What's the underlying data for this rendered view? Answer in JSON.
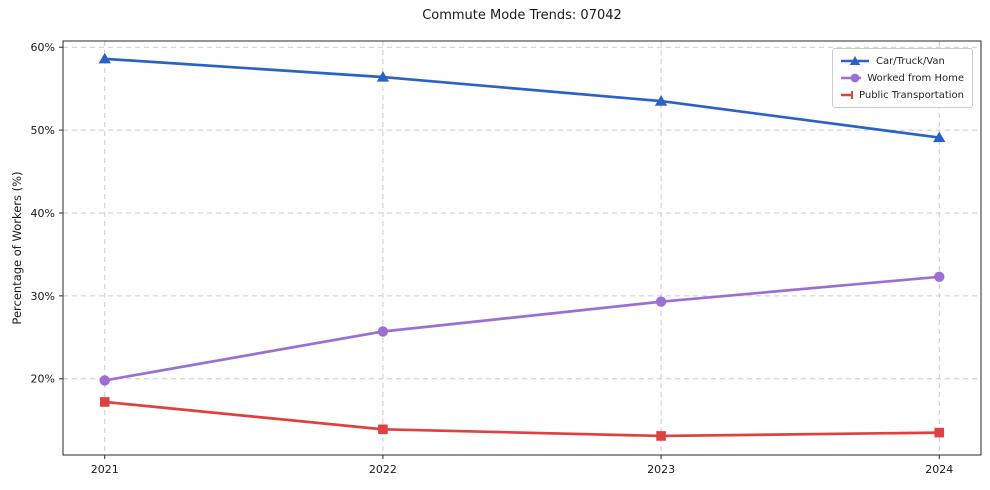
{
  "title": "Commute Mode Trends: 07042",
  "chart_data": {
    "type": "line",
    "title": "Commute Mode Trends: 07042",
    "xlabel": "",
    "ylabel": "Percentage of Workers (%)",
    "categories": [
      "2021",
      "2022",
      "2023",
      "2024"
    ],
    "series": [
      {
        "name": "Car/Truck/Van",
        "values": [
          58.6,
          56.4,
          53.5,
          49.1
        ],
        "color": "#2a63c6",
        "marker": "triangle"
      },
      {
        "name": "Worked from Home",
        "values": [
          19.8,
          25.7,
          29.3,
          32.3
        ],
        "color": "#9b70d2",
        "marker": "circle"
      },
      {
        "name": "Public Transportation",
        "values": [
          17.2,
          13.9,
          13.1,
          13.5
        ],
        "color": "#e04040",
        "marker": "square"
      }
    ],
    "yticks": [
      20,
      30,
      40,
      50,
      60
    ],
    "ytick_labels": [
      "20%",
      "30%",
      "40%",
      "50%",
      "60%"
    ],
    "ylim": [
      10.8,
      60.75
    ],
    "grid": true,
    "grid_style": "dashed",
    "legend_position": "top-right"
  },
  "colors": {
    "background": "#ffffff",
    "grid": "#cbcbcb",
    "spine": "#2a2a2a",
    "tick_text": "#1a1a1a"
  }
}
